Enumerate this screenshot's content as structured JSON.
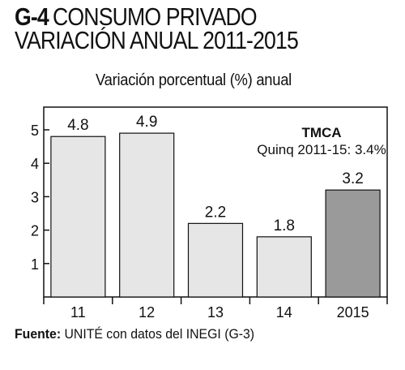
{
  "header": {
    "code": "G-4",
    "title_line1": "CONSUMO PRIVADO",
    "title_line2": "VARIACIÓN ANUAL 2011-2015",
    "subtitle": "Variación porcentual (%) anual"
  },
  "annotation": {
    "heading": "TMCA",
    "text": "Quinq 2011-15:  3.4%"
  },
  "footer": {
    "source_label": "Fuente:",
    "source_text": " UNITÉ con datos del INEGI (G-3)"
  },
  "chart_data": {
    "type": "bar",
    "title": "CONSUMO PRIVADO VARIACIÓN ANUAL 2011-2015",
    "ylabel": "Variación porcentual (%) anual",
    "categories": [
      "11",
      "12",
      "13",
      "14",
      "2015"
    ],
    "values": [
      4.8,
      4.9,
      2.2,
      1.8,
      3.2
    ],
    "data_labels": [
      "4.8",
      "4.9",
      "2.2",
      "1.8",
      "3.2"
    ],
    "yticks": [
      1,
      2,
      3,
      4,
      5
    ],
    "ylim": [
      0,
      5.8
    ],
    "grid": false,
    "colors": {
      "bar": "#e6e6e6",
      "highlight_bar": "#9a9a9a",
      "stroke": "#111111"
    },
    "highlight_index": 4
  }
}
